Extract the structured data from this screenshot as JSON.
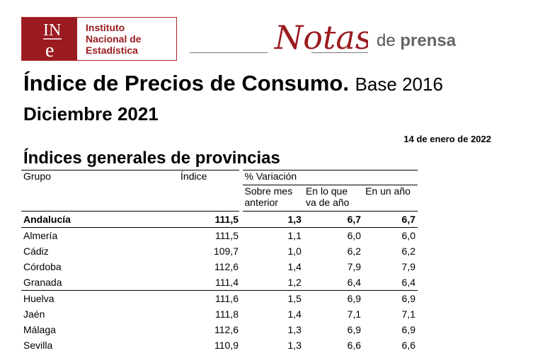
{
  "logo": {
    "letters_top": "IN",
    "letter_bottom": "e",
    "line1": "Instituto",
    "line2": "Nacional de",
    "line3": "Estadística"
  },
  "brand": {
    "notas": "Notas",
    "de": "de",
    "prensa": "prensa"
  },
  "title": "Índice de Precios de Consumo.",
  "title_base": "Base 2016",
  "subtitle": "Diciembre 2021",
  "date": "14 de enero de 2022",
  "section_title": "Índices generales de provincias",
  "table": {
    "col_group": "Grupo",
    "col_index": "Índice",
    "col_variation": "% Variación",
    "col_month_a": "Sobre mes",
    "col_month_b": "anterior",
    "col_year_a": "En lo que",
    "col_year_b": "va de año",
    "col_annual": "En un año",
    "rows": [
      {
        "name": "Andalucía",
        "index": "111,5",
        "month": "1,3",
        "ytd": "6,7",
        "annual": "6,7"
      },
      {
        "name": "Almería",
        "index": "111,5",
        "month": "1,1",
        "ytd": "6,0",
        "annual": "6,0"
      },
      {
        "name": "Cádiz",
        "index": "109,7",
        "month": "1,0",
        "ytd": "6,2",
        "annual": "6,2"
      },
      {
        "name": "Córdoba",
        "index": "112,6",
        "month": "1,4",
        "ytd": "7,9",
        "annual": "7,9"
      },
      {
        "name": "Granada",
        "index": "111,4",
        "month": "1,2",
        "ytd": "6,4",
        "annual": "6,4"
      },
      {
        "name": "Huelva",
        "index": "111,6",
        "month": "1,5",
        "ytd": "6,9",
        "annual": "6,9"
      },
      {
        "name": "Jaén",
        "index": "111,8",
        "month": "1,4",
        "ytd": "7,1",
        "annual": "7,1"
      },
      {
        "name": "Málaga",
        "index": "112,6",
        "month": "1,3",
        "ytd": "6,9",
        "annual": "6,9"
      },
      {
        "name": "Sevilla",
        "index": "110,9",
        "month": "1,3",
        "ytd": "6,6",
        "annual": "6,6"
      }
    ]
  }
}
